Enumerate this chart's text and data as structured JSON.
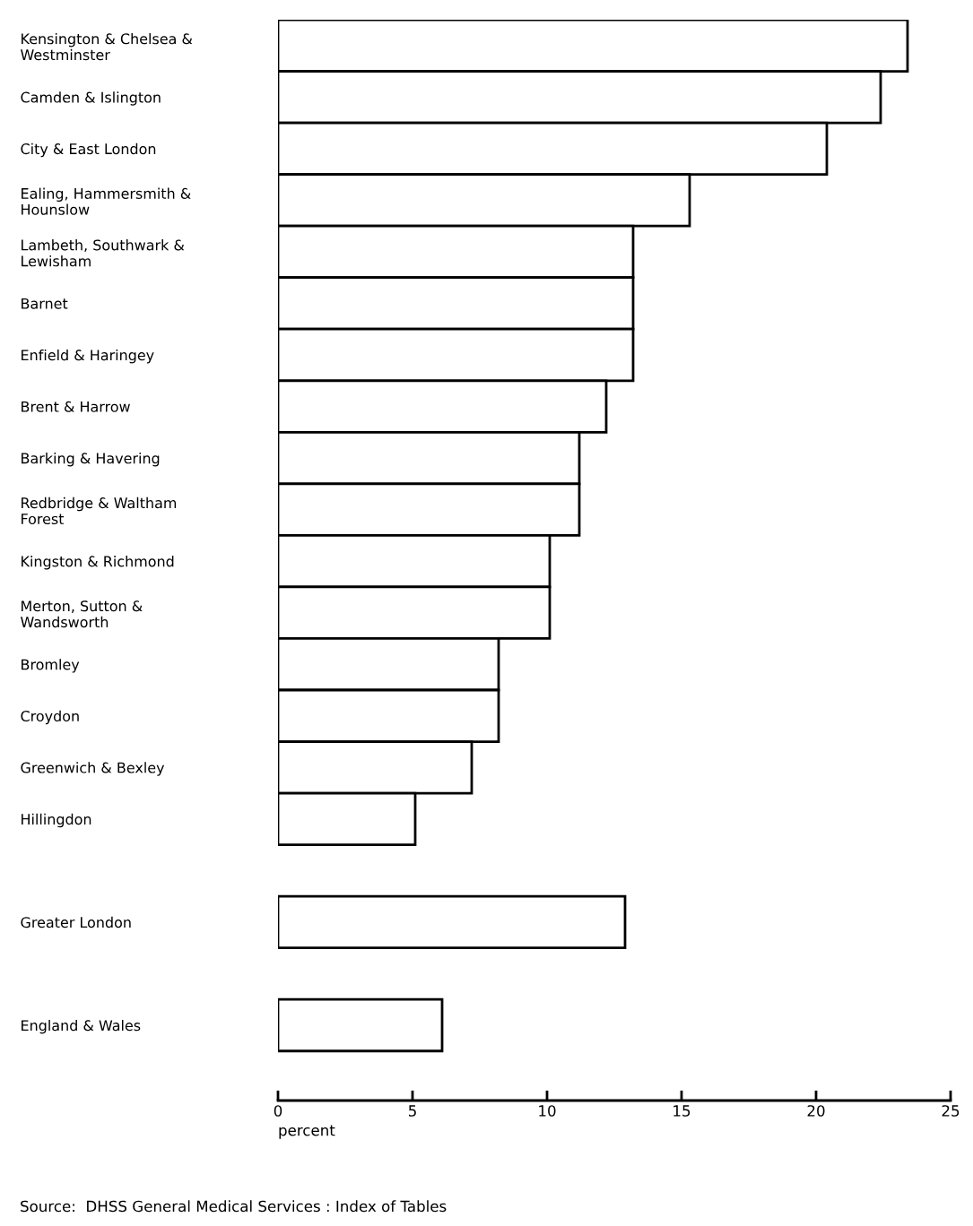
{
  "chart_data": {
    "type": "bar",
    "orientation": "horizontal",
    "categories": [
      "Kensington & Chelsea &\nWestminster",
      "Camden & Islington",
      "City & East London",
      "Ealing, Hammersmith &\nHounslow",
      "Lambeth, Southwark &\nLewisham",
      "Barnet",
      "Enfield & Haringey",
      "Brent & Harrow",
      "Barking & Havering",
      "Redbridge & Waltham\nForest",
      "Kingston & Richmond",
      "Merton, Sutton &\nWandsworth",
      "Bromley",
      "Croydon",
      "Greenwich & Bexley",
      "Hillingdon",
      null,
      "Greater London",
      null,
      "England & Wales"
    ],
    "values": [
      23.4,
      22.4,
      20.4,
      15.3,
      13.2,
      13.2,
      13.2,
      12.2,
      11.2,
      11.2,
      10.1,
      10.1,
      8.2,
      8.2,
      7.2,
      5.1,
      null,
      12.9,
      null,
      6.1
    ],
    "color": "#ffffff",
    "xlim": [
      0,
      25
    ],
    "xticks": [
      0,
      5,
      10,
      15,
      20,
      25
    ],
    "xlabel": "percent",
    "grid": false,
    "legend": false,
    "annotations": [
      "Source:  DHSS General Medical Services : Index of Tables"
    ]
  }
}
